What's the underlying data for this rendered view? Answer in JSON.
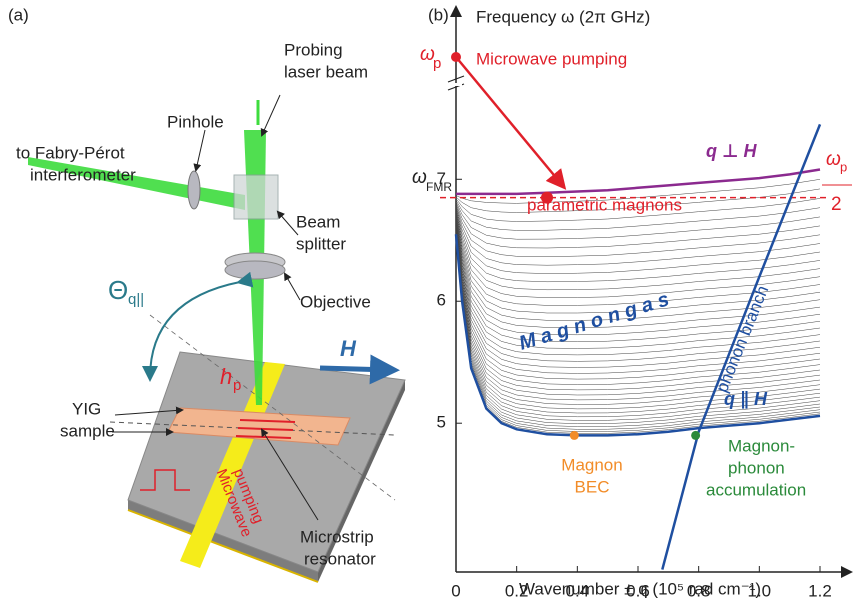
{
  "panel_a": {
    "label": "(a)",
    "pinhole": "Pinhole",
    "probe": [
      "Probing",
      "laser beam"
    ],
    "fabry": [
      "to Fabry-Pérot",
      "interferometer"
    ],
    "splitter": [
      "Beam",
      "splitter"
    ],
    "theta": "Θ",
    "theta_sub": "q||",
    "objective": "Objective",
    "hp": "h",
    "hp_sub": "p",
    "field": "H",
    "sample": [
      "YIG",
      "sample"
    ],
    "pumping": [
      "Microwave",
      "pumping"
    ],
    "resonator": [
      "Microstrip",
      "resonator"
    ]
  },
  "chart_data": {
    "type": "line",
    "label": "(b)",
    "ylabel": "Frequency ω (2π GHz)",
    "xlabel": "Wavenumber ± q (10⁵ rad cm⁻¹)",
    "xlim": [
      0,
      1.2
    ],
    "ylim": [
      3.78,
      7.65
    ],
    "xticks": [
      0,
      0.2,
      0.4,
      0.6,
      0.8,
      {
        "value": 1,
        "label": "1.0"
      },
      1.2
    ],
    "yticks": [
      5,
      6,
      7
    ],
    "pump_half": 6.85,
    "series": [
      {
        "name": "q ⊥ H",
        "color": "#8b2a8f",
        "x": [
          0,
          0.02,
          0.05,
          0.1,
          0.15,
          0.2,
          0.3,
          0.4,
          0.5,
          0.6,
          0.7,
          0.8,
          0.9,
          1.0,
          1.1,
          1.2
        ],
        "values": [
          6.88,
          6.88,
          6.88,
          6.88,
          6.88,
          6.88,
          6.89,
          6.9,
          6.91,
          6.93,
          6.95,
          6.97,
          6.99,
          7.01,
          7.04,
          7.08
        ]
      },
      {
        "name": "q ∥ H",
        "color": "#1f4fa0",
        "x": [
          0,
          0.02,
          0.05,
          0.1,
          0.15,
          0.2,
          0.3,
          0.4,
          0.5,
          0.6,
          0.7,
          0.8,
          0.9,
          1.0,
          1.1,
          1.2
        ],
        "values": [
          6.55,
          6.0,
          5.45,
          5.12,
          5.0,
          4.95,
          4.91,
          4.9,
          4.9,
          4.91,
          4.93,
          4.96,
          4.98,
          5.0,
          5.03,
          5.06
        ]
      },
      {
        "name": "phonon branch",
        "color": "#1f4fa0",
        "x": [
          0.68,
          0.8,
          1.0,
          1.2
        ],
        "values": [
          3.8,
          4.93,
          6.2,
          7.45
        ]
      }
    ],
    "points": [
      {
        "x": 0.3,
        "y": 6.85,
        "color": "#e0202a"
      },
      {
        "x": 0.39,
        "y": 4.9,
        "color": "#f28c28"
      },
      {
        "x": 0.79,
        "y": 4.9,
        "color": "#2a8a3a"
      }
    ],
    "annotations": {
      "omega_p": "ω",
      "omega_p_sub": "p",
      "pumping": "Microwave pumping",
      "omega_fmr": "ω",
      "omega_fmr_sub": "FMR",
      "half_num": "ω",
      "half_num_sub": "p",
      "half_den": "2",
      "parametric": "parametric magnons",
      "gas": "M a g n o n   g a s",
      "bec": [
        "Magnon",
        "BEC"
      ],
      "accum": [
        "Magnon-",
        "phonon",
        "accumulation"
      ]
    }
  }
}
